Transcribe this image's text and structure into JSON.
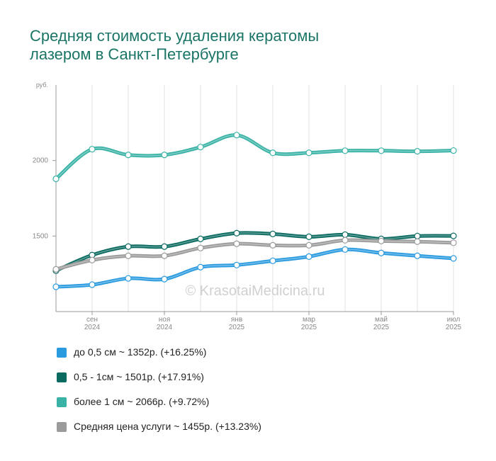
{
  "chart_data": {
    "type": "line",
    "title": "Средняя стоимость удаления кератомы лазером в Санкт-Петербурге",
    "y_unit": "руб.",
    "watermark": "© KrasotaiMedicina.ru",
    "categories": [
      null,
      "сен 2024",
      null,
      "ноя 2024",
      null,
      "янв 2025",
      null,
      "мар 2025",
      null,
      "май 2025",
      null,
      "июл 2025"
    ],
    "ylim": [
      1000,
      2500
    ],
    "yticks": [
      1500,
      2000
    ],
    "series": [
      {
        "name": "до 0,5 см ~ 1352р. (+16.25%)",
        "color": "#2b9be0",
        "values": [
          1164,
          1178,
          1220,
          1215,
          1294,
          1308,
          1336,
          1364,
          1411,
          1388,
          1369,
          1352
        ]
      },
      {
        "name": "0,5 - 1см ~ 1501р. (+17.91%)",
        "color": "#0b6b61",
        "values": [
          1271,
          1374,
          1430,
          1430,
          1481,
          1519,
          1514,
          1495,
          1509,
          1481,
          1500,
          1501
        ]
      },
      {
        "name": "более 1 см ~ 2066р. (+9.72%)",
        "color": "#3ab3a6",
        "values": [
          1879,
          2075,
          2037,
          2037,
          2089,
          2168,
          2051,
          2051,
          2065,
          2065,
          2061,
          2066
        ]
      },
      {
        "name": "Средняя цена услуги ~ 1455р. (+13.23%)",
        "color": "#9b9b9b",
        "values": [
          1280,
          1341,
          1369,
          1369,
          1421,
          1449,
          1439,
          1439,
          1472,
          1467,
          1463,
          1455
        ]
      }
    ]
  }
}
